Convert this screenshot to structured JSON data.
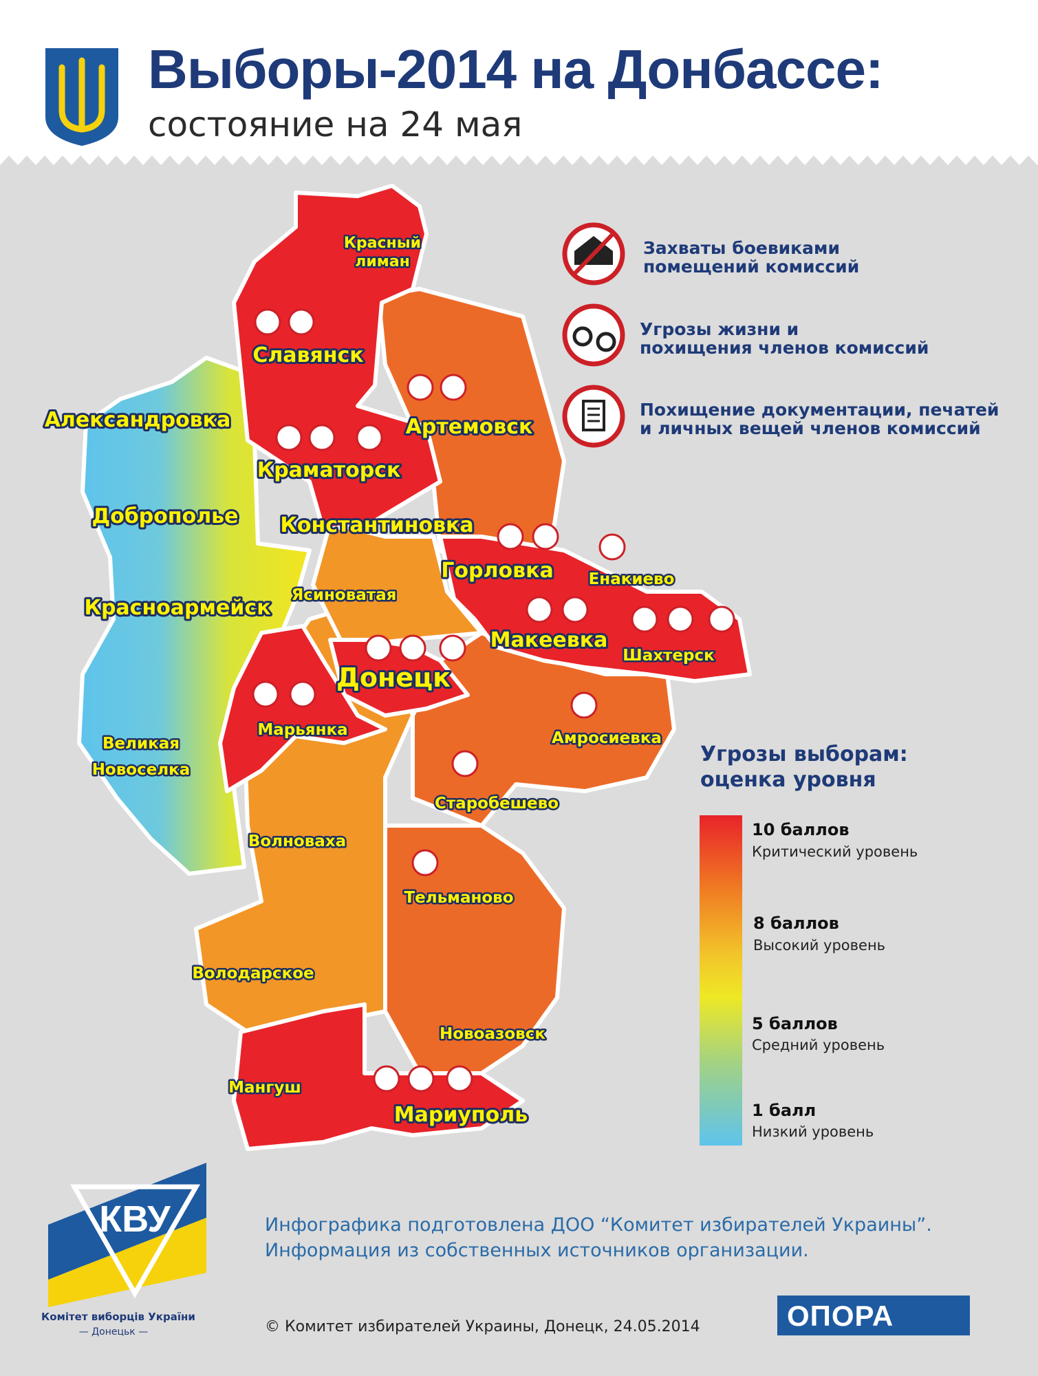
{
  "header": {
    "title": "Выборы-2014 на Донбассе:",
    "subtitle": "состояние на 24 мая",
    "emblem_icon": "trident-coat-of-arms-icon"
  },
  "legend": {
    "items": [
      {
        "icon": "house-seizure-icon",
        "text": [
          "Захваты боевиками",
          "помещений комиссий"
        ]
      },
      {
        "icon": "handcuffs-icon",
        "text": [
          "Угрозы жизни и",
          "похищения членов комиссий"
        ]
      },
      {
        "icon": "documents-icon",
        "text": [
          "Похищение документации, печатей",
          "и личных вещей членов комиссий"
        ]
      }
    ]
  },
  "scale": {
    "title": [
      "Угрозы выборам:",
      "оценка уровня"
    ],
    "levels": [
      {
        "points": "10 баллов",
        "desc": "Критический уровень"
      },
      {
        "points": "8 баллов",
        "desc": "Высокий уровень"
      },
      {
        "points": "5 баллов",
        "desc": "Средний уровень"
      },
      {
        "points": "1 балл",
        "desc": "Низкий уровень"
      }
    ],
    "colors": {
      "critical": "#e8232a",
      "high_orange": "#f2a027",
      "high": "#f2e51f",
      "medium": "#9bd48a",
      "low": "#5ec3ec"
    }
  },
  "districts": {
    "krasny_liman": [
      "Красный",
      "лиман"
    ],
    "slavyansk": "Славянск",
    "aleksandrovka": "Александровка",
    "artemovsk": "Артемовск",
    "kramatorsk": "Краматорск",
    "dobropolye": "Доброполье",
    "konstantinovka": "Константиновка",
    "gorlovka": "Горловка",
    "yenakievo": "Енакиево",
    "yasinovataya": "Ясиноватая",
    "krasnoarmeysk": "Красноармейск",
    "makeevka": "Макеевка",
    "shakhtersk": "Шахтерск",
    "donetsk": "Донецк",
    "maryinka": "Марьянка",
    "amvrosievka": "Амросиевка",
    "velikaya_novoselka": [
      "Великая",
      "Новоселка"
    ],
    "starobeshevo": "Старобешево",
    "volnovakha": "Волноваха",
    "telmanovo": "Тельманово",
    "volodarskoe": "Володарское",
    "novoazovsk": "Новоазовск",
    "mangush": "Мангуш",
    "mariupol": "Мариуполь"
  },
  "footer": {
    "credit_line1": "Инфографика подготовлена ДОО “Комитет избирателей Украины”.",
    "credit_line2": "Информация из собственных источников организации.",
    "copyright": "© Комитет избирателей Украины, Донецк, 24.05.2014",
    "org_logo_text": "КВУ",
    "org_name": "Комітет виборців України",
    "org_city": "— Донецьк —",
    "partner": "ОПОРА"
  }
}
